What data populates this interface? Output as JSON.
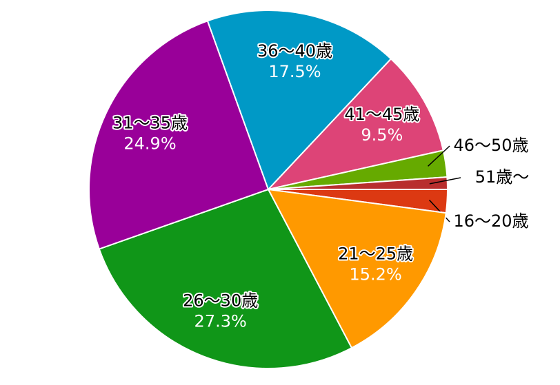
{
  "chart_data": {
    "type": "pie",
    "categories": [
      "16～20歳",
      "21～25歳",
      "26～30歳",
      "31～35歳",
      "36～40歳",
      "41～45歳",
      "46～50歳",
      "51歳～"
    ],
    "values": [
      2.1,
      15.2,
      27.3,
      24.9,
      17.5,
      9.5,
      2.4,
      1.1
    ],
    "value_labels": [
      null,
      "15.2%",
      "27.3%",
      "24.9%",
      "17.5%",
      "9.5%",
      null,
      null
    ],
    "colors": [
      "#dc3912",
      "#ff9900",
      "#109618",
      "#990099",
      "#0099c6",
      "#dd4477",
      "#66aa00",
      "#b82e2e"
    ]
  }
}
